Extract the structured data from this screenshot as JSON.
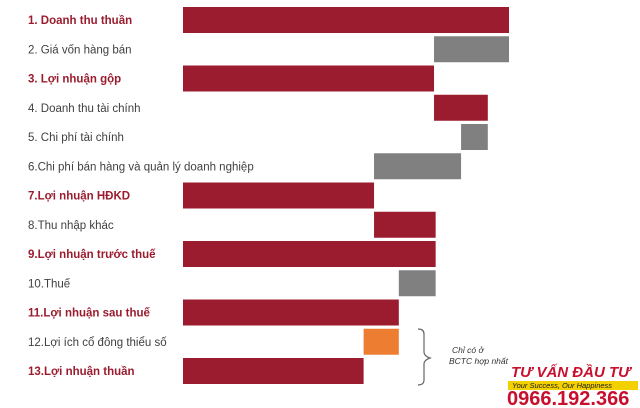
{
  "chart_data": {
    "type": "bar",
    "subtype": "waterfall",
    "orientation": "horizontal",
    "grid": false,
    "legend": "none",
    "colors": {
      "total": "#9b1c2e",
      "decrease": "#808080",
      "minority": "#ed7d31",
      "label_total": "#9b1c2e",
      "label_item": "#404040"
    },
    "xlim": [
      0,
      100
    ],
    "rows": [
      {
        "label": "1. Doanh thu thuần",
        "start": 0,
        "end": 100,
        "kind": "total"
      },
      {
        "label": "2. Giá vốn hàng bán",
        "start": 77,
        "end": 100,
        "kind": "decrease"
      },
      {
        "label": "3. Lợi nhuận gộp",
        "start": 0,
        "end": 77,
        "kind": "total"
      },
      {
        "label": "4. Doanh thu tài chính",
        "start": 77,
        "end": 93.5,
        "kind": "total"
      },
      {
        "label": "5. Chi phí tài chính",
        "start": 85.3,
        "end": 93.5,
        "kind": "decrease"
      },
      {
        "label": "6.Chi phí bán hàng và quản lý doanh nghiệp",
        "start": 58.6,
        "end": 85.3,
        "kind": "decrease"
      },
      {
        "label": "7.Lợi nhuận HĐKD",
        "start": 0,
        "end": 58.6,
        "kind": "total"
      },
      {
        "label": "8.Thu nhập khác",
        "start": 58.6,
        "end": 77.5,
        "kind": "total"
      },
      {
        "label": "9.Lợi nhuận trước thuế",
        "start": 0,
        "end": 77.5,
        "kind": "total"
      },
      {
        "label": "10.Thuế",
        "start": 66.2,
        "end": 77.5,
        "kind": "decrease"
      },
      {
        "label": "11.Lợi nhuận sau thuế",
        "start": 0,
        "end": 66.2,
        "kind": "total"
      },
      {
        "label": "12.Lợi ích cổ đông thiểu số",
        "start": 55.4,
        "end": 66.2,
        "kind": "minority"
      },
      {
        "label": "13.Lợi nhuận thuần",
        "start": 0,
        "end": 55.4,
        "kind": "total"
      }
    ],
    "annotation": {
      "lines": [
        "Chỉ có ở",
        "BCTC hợp nhất"
      ]
    }
  },
  "brand": {
    "title": "TƯ VẤN ĐẦU TƯ",
    "slogan": "Your Success, Our Happiness",
    "phone": "0966.192.366"
  }
}
